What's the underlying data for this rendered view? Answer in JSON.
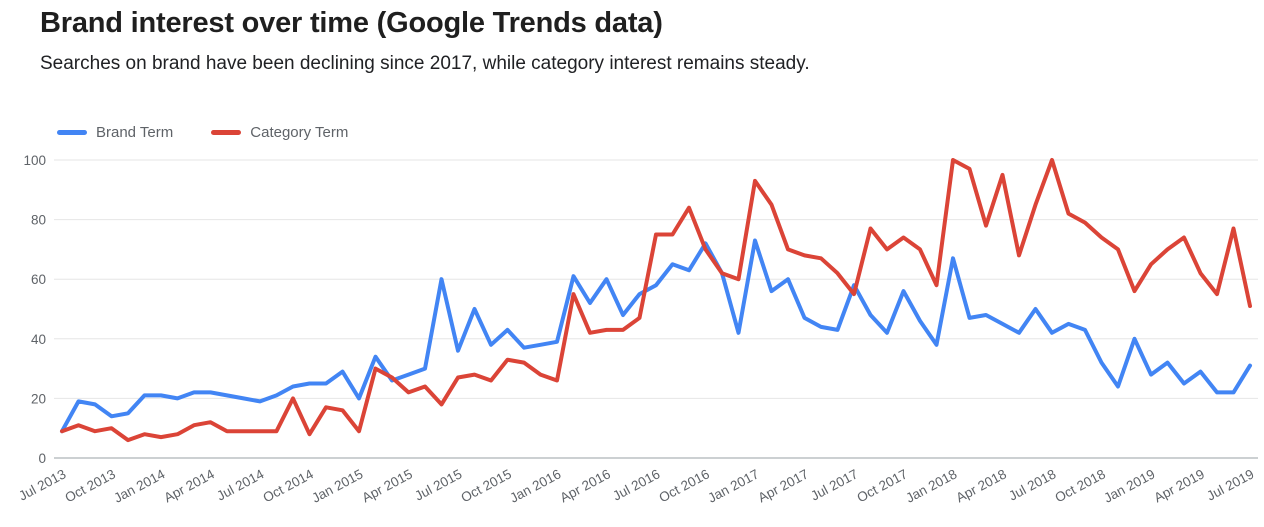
{
  "chart_data": {
    "type": "line",
    "title": "Brand interest over time (Google Trends data)",
    "subtitle": "Searches on brand have been declining since 2017, while category interest remains steady.",
    "legend_position": "top-left",
    "grid": true,
    "ylim": [
      0,
      100
    ],
    "y_ticks": [
      0,
      20,
      40,
      60,
      80,
      100
    ],
    "x_tick_labels": [
      "Jul 2013",
      "Oct 2013",
      "Jan 2014",
      "Apr 2014",
      "Jul 2014",
      "Oct 2014",
      "Jan 2015",
      "Apr 2015",
      "Jul 2015",
      "Oct 2015",
      "Jan 2016",
      "Apr 2016",
      "Jul 2016",
      "Oct 2016",
      "Jan 2017",
      "Apr 2017",
      "Jul 2017",
      "Oct 2017",
      "Jan 2018",
      "Apr 2018",
      "Jul 2018",
      "Oct 2018",
      "Jan 2019",
      "Apr 2019",
      "Jul 2019"
    ],
    "categories": [
      "Jul 2013",
      "Aug 2013",
      "Sep 2013",
      "Oct 2013",
      "Nov 2013",
      "Dec 2013",
      "Jan 2014",
      "Feb 2014",
      "Mar 2014",
      "Apr 2014",
      "May 2014",
      "Jun 2014",
      "Jul 2014",
      "Aug 2014",
      "Sep 2014",
      "Oct 2014",
      "Nov 2014",
      "Dec 2014",
      "Jan 2015",
      "Feb 2015",
      "Mar 2015",
      "Apr 2015",
      "May 2015",
      "Jun 2015",
      "Jul 2015",
      "Aug 2015",
      "Sep 2015",
      "Oct 2015",
      "Nov 2015",
      "Dec 2015",
      "Jan 2016",
      "Feb 2016",
      "Mar 2016",
      "Apr 2016",
      "May 2016",
      "Jun 2016",
      "Jul 2016",
      "Aug 2016",
      "Sep 2016",
      "Oct 2016",
      "Nov 2016",
      "Dec 2016",
      "Jan 2017",
      "Feb 2017",
      "Mar 2017",
      "Apr 2017",
      "May 2017",
      "Jun 2017",
      "Jul 2017",
      "Aug 2017",
      "Sep 2017",
      "Oct 2017",
      "Nov 2017",
      "Dec 2017",
      "Jan 2018",
      "Feb 2018",
      "Mar 2018",
      "Apr 2018",
      "May 2018",
      "Jun 2018",
      "Jul 2018",
      "Aug 2018",
      "Sep 2018",
      "Oct 2018",
      "Nov 2018",
      "Dec 2018",
      "Jan 2019",
      "Feb 2019",
      "Mar 2019",
      "Apr 2019",
      "May 2019",
      "Jun 2019",
      "Jul 2019"
    ],
    "series": [
      {
        "name": "Brand Term",
        "color": "#4285f4",
        "values": [
          9,
          19,
          18,
          14,
          15,
          21,
          21,
          20,
          22,
          22,
          21,
          20,
          19,
          21,
          24,
          25,
          25,
          29,
          20,
          34,
          26,
          28,
          30,
          60,
          36,
          50,
          38,
          43,
          37,
          38,
          39,
          61,
          52,
          60,
          48,
          55,
          58,
          65,
          63,
          72,
          62,
          42,
          73,
          56,
          60,
          47,
          44,
          43,
          58,
          48,
          42,
          56,
          46,
          38,
          67,
          47,
          48,
          45,
          42,
          50,
          42,
          45,
          43,
          32,
          24,
          40,
          28,
          32,
          25,
          29,
          22,
          22,
          31
        ]
      },
      {
        "name": "Category Term",
        "color": "#db4437",
        "values": [
          9,
          11,
          9,
          10,
          6,
          8,
          7,
          8,
          11,
          12,
          9,
          9,
          9,
          9,
          20,
          8,
          17,
          16,
          9,
          30,
          27,
          22,
          24,
          18,
          27,
          28,
          26,
          33,
          32,
          28,
          26,
          55,
          42,
          43,
          43,
          47,
          75,
          75,
          84,
          70,
          62,
          60,
          93,
          85,
          70,
          68,
          67,
          62,
          55,
          77,
          70,
          74,
          70,
          58,
          100,
          97,
          78,
          95,
          68,
          85,
          100,
          82,
          79,
          74,
          70,
          56,
          65,
          70,
          74,
          62,
          55,
          77,
          51
        ]
      }
    ],
    "axis_colors": {
      "grid": "#e6e6e6",
      "zero_line": "#9aa0a6",
      "tick_label": "#5f6368"
    }
  }
}
